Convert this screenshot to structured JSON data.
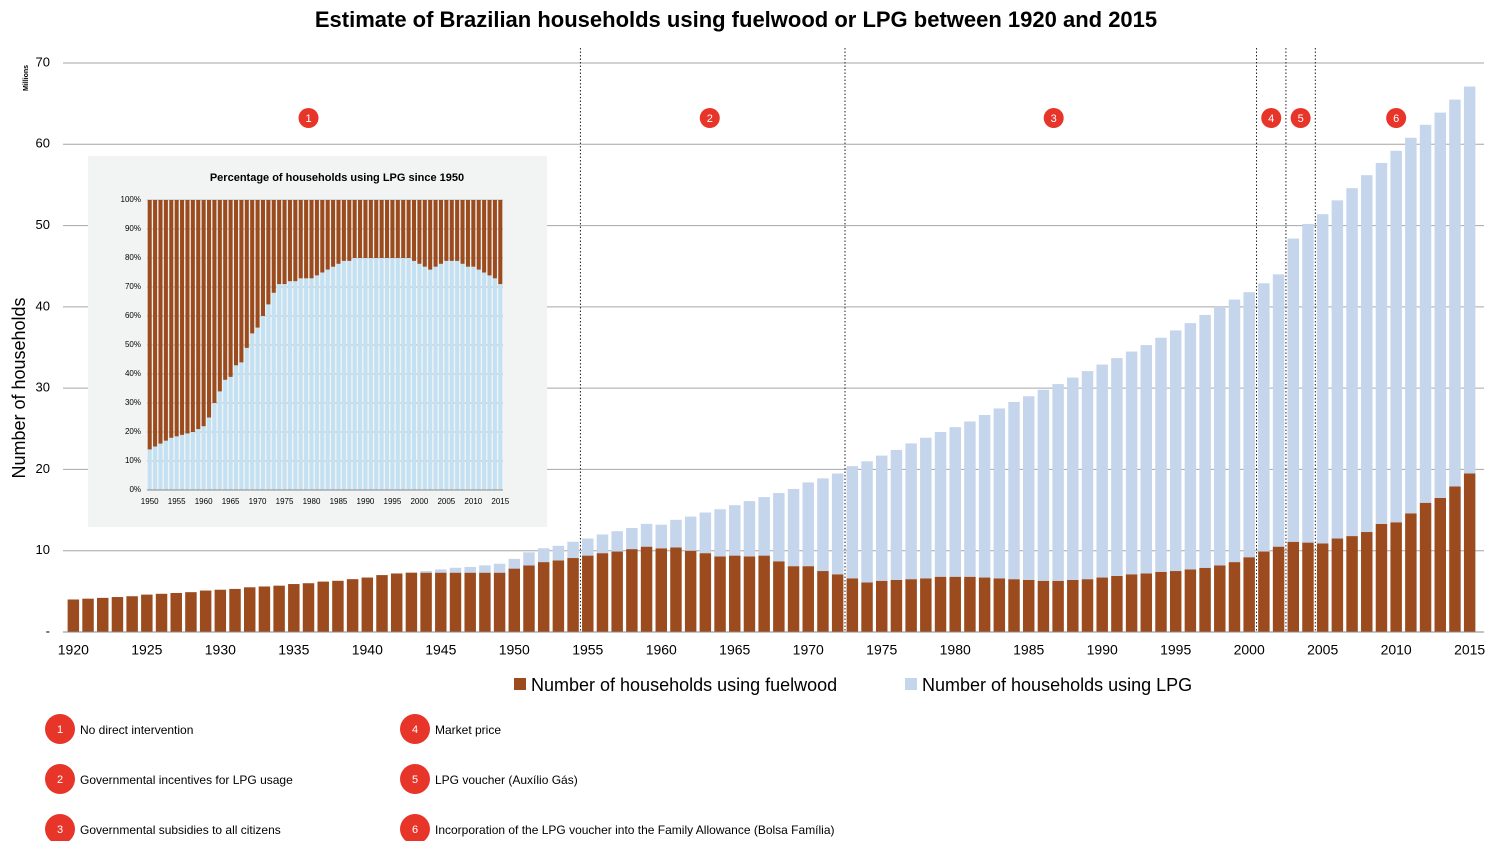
{
  "chart_data": [
    {
      "type": "bar",
      "stacked": true,
      "title": "Estimate of Brazilian households using fuelwood or LPG between 1920 and 2015",
      "y_unit": "Millions",
      "y_label": "Number of households",
      "x": [
        1920,
        1921,
        1922,
        1923,
        1924,
        1925,
        1926,
        1927,
        1928,
        1929,
        1930,
        1931,
        1932,
        1933,
        1934,
        1935,
        1936,
        1937,
        1938,
        1939,
        1940,
        1941,
        1942,
        1943,
        1944,
        1945,
        1946,
        1947,
        1948,
        1949,
        1950,
        1951,
        1952,
        1953,
        1954,
        1955,
        1956,
        1957,
        1958,
        1959,
        1960,
        1961,
        1962,
        1963,
        1964,
        1965,
        1966,
        1967,
        1968,
        1969,
        1970,
        1971,
        1972,
        1973,
        1974,
        1975,
        1976,
        1977,
        1978,
        1979,
        1980,
        1981,
        1982,
        1983,
        1984,
        1985,
        1986,
        1987,
        1988,
        1989,
        1990,
        1991,
        1992,
        1993,
        1994,
        1995,
        1996,
        1997,
        1998,
        1999,
        2000,
        2001,
        2002,
        2003,
        2004,
        2005,
        2006,
        2007,
        2008,
        2009,
        2010,
        2011,
        2012,
        2013,
        2014,
        2015
      ],
      "series": [
        {
          "name": "Number of households using fuelwood",
          "color": "#9b4b1d",
          "values": [
            4.0,
            4.1,
            4.2,
            4.3,
            4.4,
            4.6,
            4.7,
            4.8,
            4.9,
            5.1,
            5.2,
            5.3,
            5.5,
            5.6,
            5.7,
            5.9,
            6.0,
            6.2,
            6.3,
            6.5,
            6.7,
            7.0,
            7.2,
            7.3,
            7.3,
            7.3,
            7.3,
            7.3,
            7.3,
            7.3,
            7.8,
            8.2,
            8.6,
            8.8,
            9.1,
            9.4,
            9.7,
            9.9,
            10.2,
            10.5,
            10.3,
            10.4,
            10.0,
            9.7,
            9.3,
            9.4,
            9.3,
            9.4,
            8.7,
            8.1,
            8.1,
            7.5,
            7.1,
            6.6,
            6.1,
            6.3,
            6.4,
            6.5,
            6.6,
            6.8,
            6.8,
            6.8,
            6.7,
            6.6,
            6.5,
            6.4,
            6.3,
            6.3,
            6.4,
            6.5,
            6.7,
            6.9,
            7.1,
            7.2,
            7.4,
            7.5,
            7.7,
            7.9,
            8.2,
            8.6,
            9.2,
            9.9,
            10.5,
            11.1,
            11.0,
            10.9,
            11.5,
            11.8,
            12.3,
            13.3,
            13.5,
            14.6,
            15.9,
            16.5,
            17.9,
            19.5
          ]
        },
        {
          "name": "Number of households using LPG",
          "color": "#c5d5ec",
          "values": [
            0,
            0,
            0,
            0,
            0,
            0,
            0,
            0,
            0,
            0,
            0,
            0,
            0,
            0,
            0,
            0,
            0,
            0,
            0,
            0,
            0,
            0,
            0,
            0,
            0.2,
            0.4,
            0.6,
            0.7,
            0.9,
            1.1,
            1.2,
            1.6,
            1.7,
            1.8,
            2.0,
            2.1,
            2.3,
            2.5,
            2.6,
            2.8,
            2.9,
            3.4,
            4.2,
            5.0,
            5.8,
            6.2,
            6.8,
            7.2,
            8.4,
            9.5,
            10.3,
            11.4,
            12.4,
            13.8,
            14.9,
            15.4,
            16.0,
            16.7,
            17.3,
            17.8,
            18.4,
            19.1,
            20.0,
            20.9,
            21.8,
            22.6,
            23.5,
            24.2,
            24.9,
            25.6,
            26.2,
            26.8,
            27.4,
            28.1,
            28.8,
            29.6,
            30.3,
            31.1,
            31.8,
            32.3,
            32.6,
            33.0,
            33.5,
            37.3,
            39.2,
            40.5,
            41.6,
            42.8,
            43.9,
            44.4,
            45.7,
            46.2,
            46.5,
            47.4,
            47.6,
            47.6
          ]
        }
      ],
      "xlim": [
        1919.5,
        2015.5
      ],
      "xticks": [
        1920,
        1925,
        1930,
        1935,
        1940,
        1945,
        1950,
        1955,
        1960,
        1965,
        1970,
        1975,
        1980,
        1985,
        1990,
        1995,
        2000,
        2005,
        2010,
        2015
      ],
      "ylim": [
        0,
        70
      ],
      "yticks": [
        {
          "value": 0,
          "label": "-"
        },
        10,
        20,
        30,
        40,
        50,
        60,
        70
      ],
      "grid": true,
      "period_boundaries": [
        1954.5,
        1972.5,
        2000.5,
        2002.5,
        2004.5
      ],
      "period_markers": [
        {
          "label": "1",
          "x": 1936
        },
        {
          "label": "2",
          "x": 1963.3
        },
        {
          "label": "3",
          "x": 1986.7
        },
        {
          "label": "4",
          "x": 2001.5
        },
        {
          "label": "5",
          "x": 2003.5
        },
        {
          "label": "6",
          "x": 2010
        }
      ],
      "legend": "bottom"
    },
    {
      "type": "bar",
      "stacked": true,
      "title": "Percentage of households using LPG since 1950",
      "x": [
        1950,
        1951,
        1952,
        1953,
        1954,
        1955,
        1956,
        1957,
        1958,
        1959,
        1960,
        1961,
        1962,
        1963,
        1964,
        1965,
        1966,
        1967,
        1968,
        1969,
        1970,
        1971,
        1972,
        1973,
        1974,
        1975,
        1976,
        1977,
        1978,
        1979,
        1980,
        1981,
        1982,
        1983,
        1984,
        1985,
        1986,
        1987,
        1988,
        1989,
        1990,
        1991,
        1992,
        1993,
        1994,
        1995,
        1996,
        1997,
        1998,
        1999,
        2000,
        2001,
        2002,
        2003,
        2004,
        2005,
        2006,
        2007,
        2008,
        2009,
        2010,
        2011,
        2012,
        2013,
        2014,
        2015
      ],
      "series": [
        {
          "color": "#c3e1f3",
          "values": [
            14,
            15,
            16,
            17,
            18,
            18.5,
            19,
            19.5,
            20,
            21,
            22,
            25,
            30,
            34,
            38,
            39,
            43,
            44,
            49,
            54,
            56,
            60,
            64,
            68,
            71,
            71,
            72,
            72,
            73,
            73,
            73,
            74,
            75,
            76,
            77,
            78,
            79,
            79,
            80,
            80,
            80,
            80,
            80,
            80,
            80,
            80,
            80,
            80,
            80,
            79,
            78,
            77,
            76,
            77,
            78,
            79,
            79,
            79,
            78,
            77,
            77,
            76,
            75,
            74,
            73,
            71
          ]
        },
        {
          "color": "#9b4b1d",
          "values": [
            86,
            85,
            84,
            83,
            82,
            81.5,
            81,
            80.5,
            80,
            79,
            78,
            75,
            70,
            66,
            62,
            61,
            57,
            56,
            51,
            46,
            44,
            40,
            36,
            32,
            29,
            29,
            28,
            28,
            27,
            27,
            27,
            26,
            25,
            24,
            23,
            22,
            21,
            21,
            20,
            20,
            20,
            20,
            20,
            20,
            20,
            20,
            20,
            20,
            20,
            21,
            22,
            23,
            24,
            23,
            22,
            21,
            21,
            21,
            22,
            23,
            23,
            24,
            25,
            26,
            27,
            29
          ]
        }
      ],
      "xlim": [
        1949.5,
        2015.5
      ],
      "xticks": [
        1950,
        1955,
        1960,
        1965,
        1970,
        1975,
        1980,
        1985,
        1990,
        1995,
        2000,
        2005,
        2010,
        2015
      ],
      "ylim": [
        0,
        100
      ],
      "yticks": [
        {
          "value": 0,
          "label": "0%"
        },
        {
          "value": 10,
          "label": "10%"
        },
        {
          "value": 20,
          "label": "20%"
        },
        {
          "value": 30,
          "label": "30%"
        },
        {
          "value": 40,
          "label": "40%"
        },
        {
          "value": 50,
          "label": "50%"
        },
        {
          "value": 60,
          "label": "60%"
        },
        {
          "value": 70,
          "label": "70%"
        },
        {
          "value": 80,
          "label": "80%"
        },
        {
          "value": 90,
          "label": "90%"
        },
        {
          "value": 100,
          "label": "100%"
        }
      ],
      "grid": true
    }
  ],
  "notes": [
    {
      "number": "1",
      "text": "No direct intervention"
    },
    {
      "number": "2",
      "text": "Governmental incentives for LPG usage"
    },
    {
      "number": "3",
      "text": "Governmental subsidies to all citizens"
    },
    {
      "number": "4",
      "text": "Market price"
    },
    {
      "number": "5",
      "text": "LPG voucher (Auxílio Gás)"
    },
    {
      "number": "6",
      "text": "Incorporation of the LPG voucher into the Family Allowance (Bolsa Família)"
    }
  ]
}
